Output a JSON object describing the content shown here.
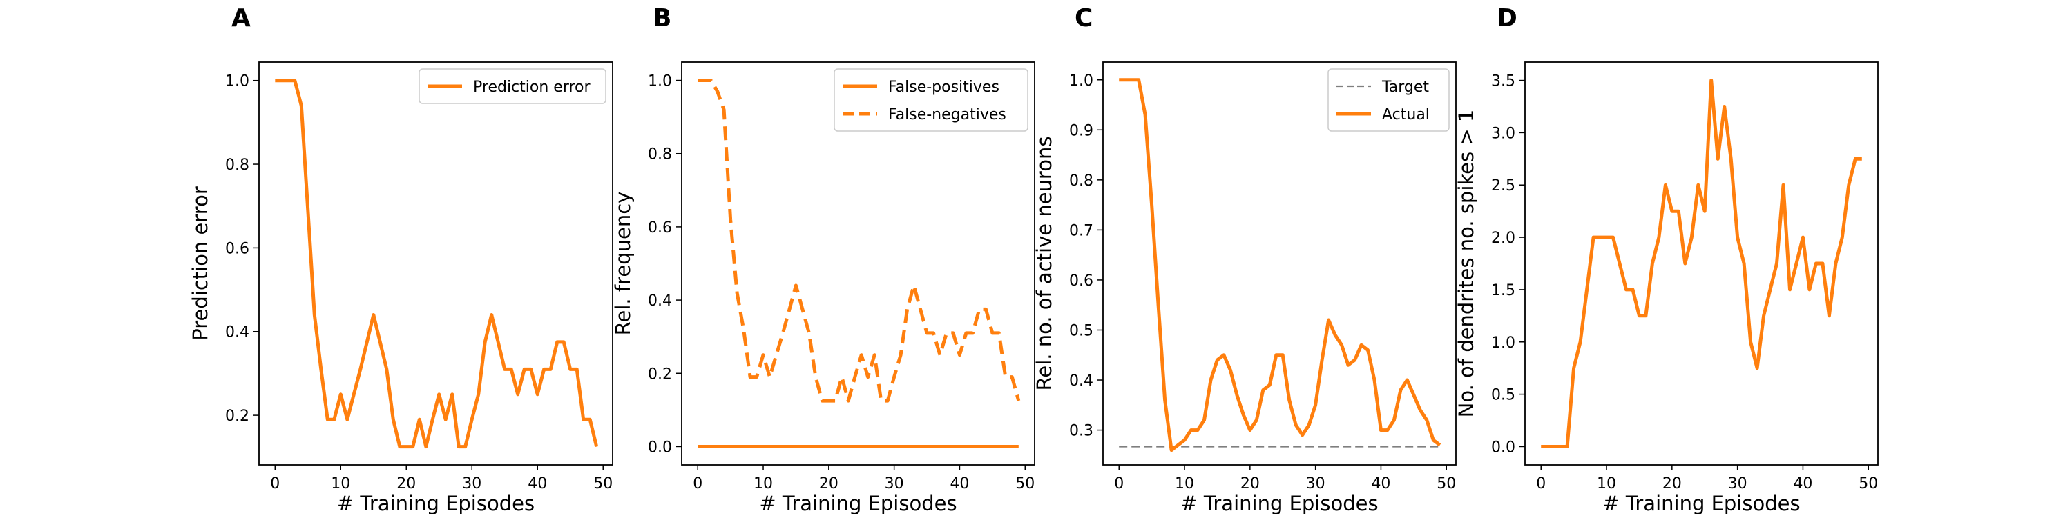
{
  "figure": {
    "colors": {
      "actual": "#ff7f0e",
      "target": "#7f7f7f",
      "axes": "#000000"
    }
  },
  "chart_data": [
    {
      "type": "line",
      "panel_label": "A",
      "xlabel": "# Training Episodes",
      "ylabel": "Prediction error",
      "xlim": [
        -2.45,
        51.45
      ],
      "ylim": [
        0.0815,
        1.044
      ],
      "xticks": [
        0,
        10,
        20,
        30,
        40,
        50
      ],
      "yticks": [
        0.2,
        0.4,
        0.6,
        0.8,
        1.0
      ],
      "ytick_labels": [
        "0.2",
        "0.4",
        "0.6",
        "0.8",
        "1.0"
      ],
      "legend_position": "top-right",
      "series": [
        {
          "name": "Prediction error",
          "color": "#ff7f0e",
          "style": "solid",
          "x": [
            0,
            1,
            2,
            3,
            4,
            5,
            6,
            7,
            8,
            9,
            10,
            11,
            12,
            13,
            14,
            15,
            16,
            17,
            18,
            19,
            20,
            21,
            22,
            23,
            24,
            25,
            26,
            27,
            28,
            29,
            30,
            31,
            32,
            33,
            34,
            35,
            36,
            37,
            38,
            39,
            40,
            41,
            42,
            43,
            44,
            45,
            46,
            47,
            48,
            49
          ],
          "y": [
            1.0,
            1.0,
            1.0,
            1.0,
            0.94,
            0.69,
            0.44,
            0.31,
            0.19,
            0.19,
            0.25,
            0.19,
            0.25,
            0.31,
            0.375,
            0.44,
            0.375,
            0.31,
            0.19,
            0.125,
            0.125,
            0.125,
            0.19,
            0.125,
            0.19,
            0.25,
            0.19,
            0.25,
            0.125,
            0.125,
            0.19,
            0.25,
            0.375,
            0.44,
            0.375,
            0.31,
            0.31,
            0.25,
            0.31,
            0.31,
            0.25,
            0.31,
            0.31,
            0.375,
            0.375,
            0.31,
            0.31,
            0.19,
            0.19,
            0.125
          ]
        }
      ]
    },
    {
      "type": "line",
      "panel_label": "B",
      "xlabel": "# Training Episodes",
      "ylabel": "Rel. frequency",
      "xlim": [
        -2.45,
        51.45
      ],
      "ylim": [
        -0.05,
        1.05
      ],
      "xticks": [
        0,
        10,
        20,
        30,
        40,
        50
      ],
      "yticks": [
        0.0,
        0.2,
        0.4,
        0.6,
        0.8,
        1.0
      ],
      "ytick_labels": [
        "0.0",
        "0.2",
        "0.4",
        "0.6",
        "0.8",
        "1.0"
      ],
      "legend_position": "top-right",
      "series": [
        {
          "name": "False-positives",
          "color": "#ff7f0e",
          "style": "solid",
          "x": [
            0,
            1,
            2,
            3,
            4,
            5,
            6,
            7,
            8,
            9,
            10,
            11,
            12,
            13,
            14,
            15,
            16,
            17,
            18,
            19,
            20,
            21,
            22,
            23,
            24,
            25,
            26,
            27,
            28,
            29,
            30,
            31,
            32,
            33,
            34,
            35,
            36,
            37,
            38,
            39,
            40,
            41,
            42,
            43,
            44,
            45,
            46,
            47,
            48,
            49
          ],
          "y": [
            0,
            0,
            0,
            0,
            0,
            0,
            0,
            0,
            0,
            0,
            0,
            0,
            0,
            0,
            0,
            0,
            0,
            0,
            0,
            0,
            0,
            0,
            0,
            0,
            0,
            0,
            0,
            0,
            0,
            0,
            0,
            0,
            0,
            0,
            0,
            0,
            0,
            0,
            0,
            0,
            0,
            0,
            0,
            0,
            0,
            0,
            0,
            0,
            0,
            0
          ]
        },
        {
          "name": "False-negatives",
          "color": "#ff7f0e",
          "style": "dashed",
          "x": [
            0,
            1,
            2,
            3,
            4,
            5,
            6,
            7,
            8,
            9,
            10,
            11,
            12,
            13,
            14,
            15,
            16,
            17,
            18,
            19,
            20,
            21,
            22,
            23,
            24,
            25,
            26,
            27,
            28,
            29,
            30,
            31,
            32,
            33,
            34,
            35,
            36,
            37,
            38,
            39,
            40,
            41,
            42,
            43,
            44,
            45,
            46,
            47,
            48,
            49
          ],
          "y": [
            1.0,
            1.0,
            1.0,
            0.97,
            0.92,
            0.62,
            0.42,
            0.32,
            0.19,
            0.19,
            0.25,
            0.19,
            0.25,
            0.31,
            0.375,
            0.44,
            0.375,
            0.31,
            0.19,
            0.125,
            0.125,
            0.125,
            0.19,
            0.125,
            0.19,
            0.25,
            0.19,
            0.25,
            0.125,
            0.125,
            0.19,
            0.25,
            0.375,
            0.44,
            0.375,
            0.31,
            0.31,
            0.25,
            0.31,
            0.31,
            0.25,
            0.31,
            0.31,
            0.375,
            0.375,
            0.31,
            0.31,
            0.19,
            0.19,
            0.125
          ]
        }
      ]
    },
    {
      "type": "line",
      "panel_label": "C",
      "xlabel": "# Training Episodes",
      "ylabel": "Rel. no. of active neurons",
      "xlim": [
        -2.45,
        51.45
      ],
      "ylim": [
        0.2305,
        1.0355
      ],
      "xticks": [
        0,
        10,
        20,
        30,
        40,
        50
      ],
      "yticks": [
        0.3,
        0.4,
        0.5,
        0.6,
        0.7,
        0.8,
        0.9,
        1.0
      ],
      "ytick_labels": [
        "0.3",
        "0.4",
        "0.5",
        "0.6",
        "0.7",
        "0.8",
        "0.9",
        "1.0"
      ],
      "legend_position": "top-right",
      "series": [
        {
          "name": "Target",
          "color": "#7f7f7f",
          "style": "dashed",
          "x": [
            0,
            49
          ],
          "y": [
            0.267,
            0.267
          ]
        },
        {
          "name": "Actual",
          "color": "#ff7f0e",
          "style": "solid",
          "x": [
            0,
            1,
            2,
            3,
            4,
            5,
            6,
            7,
            8,
            9,
            10,
            11,
            12,
            13,
            14,
            15,
            16,
            17,
            18,
            19,
            20,
            21,
            22,
            23,
            24,
            25,
            26,
            27,
            28,
            29,
            30,
            31,
            32,
            33,
            34,
            35,
            36,
            37,
            38,
            39,
            40,
            41,
            42,
            43,
            44,
            45,
            46,
            47,
            48,
            49
          ],
          "y": [
            1.0,
            1.0,
            1.0,
            1.0,
            0.93,
            0.75,
            0.55,
            0.36,
            0.26,
            0.27,
            0.28,
            0.3,
            0.3,
            0.32,
            0.4,
            0.44,
            0.45,
            0.42,
            0.37,
            0.33,
            0.3,
            0.32,
            0.38,
            0.39,
            0.45,
            0.45,
            0.36,
            0.31,
            0.29,
            0.31,
            0.35,
            0.44,
            0.52,
            0.49,
            0.47,
            0.43,
            0.44,
            0.47,
            0.46,
            0.4,
            0.3,
            0.3,
            0.32,
            0.38,
            0.4,
            0.37,
            0.34,
            0.32,
            0.28,
            0.27
          ]
        }
      ]
    },
    {
      "type": "line",
      "panel_label": "D",
      "xlabel": "# Training Episodes",
      "ylabel": "No. of dendrites no. spikes > 1",
      "xlim": [
        -2.45,
        51.45
      ],
      "ylim": [
        -0.175,
        3.675
      ],
      "xticks": [
        0,
        10,
        20,
        30,
        40,
        50
      ],
      "yticks": [
        0.0,
        0.5,
        1.0,
        1.5,
        2.0,
        2.5,
        3.0,
        3.5
      ],
      "ytick_labels": [
        "0.0",
        "0.5",
        "1.0",
        "1.5",
        "2.0",
        "2.5",
        "3.0",
        "3.5"
      ],
      "legend_position": "none",
      "series": [
        {
          "color": "#ff7f0e",
          "style": "solid",
          "x": [
            0,
            1,
            2,
            3,
            4,
            5,
            6,
            7,
            8,
            9,
            10,
            11,
            12,
            13,
            14,
            15,
            16,
            17,
            18,
            19,
            20,
            21,
            22,
            23,
            24,
            25,
            26,
            27,
            28,
            29,
            30,
            31,
            32,
            33,
            34,
            35,
            36,
            37,
            38,
            39,
            40,
            41,
            42,
            43,
            44,
            45,
            46,
            47,
            48,
            49
          ],
          "y": [
            0,
            0,
            0,
            0,
            0,
            0.75,
            1.0,
            1.5,
            2.0,
            2.0,
            2.0,
            2.0,
            1.75,
            1.5,
            1.5,
            1.25,
            1.25,
            1.75,
            2.0,
            2.5,
            2.25,
            2.25,
            1.75,
            2.0,
            2.5,
            2.25,
            3.5,
            2.75,
            3.25,
            2.75,
            2.0,
            1.75,
            1.0,
            0.75,
            1.25,
            1.5,
            1.75,
            2.5,
            1.5,
            1.75,
            2.0,
            1.5,
            1.75,
            1.75,
            1.25,
            1.75,
            2.0,
            2.5,
            2.75,
            2.75
          ]
        }
      ]
    }
  ]
}
